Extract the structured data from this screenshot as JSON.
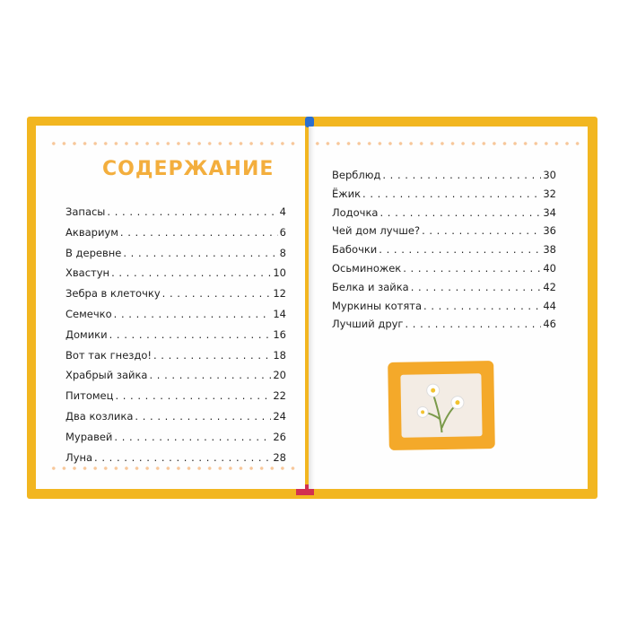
{
  "left_page": {
    "title": "СОДЕРЖАНИЕ",
    "entries": [
      {
        "title": "Запасы",
        "page": "4"
      },
      {
        "title": "Аквариум",
        "page": "6"
      },
      {
        "title": "В деревне",
        "page": "8"
      },
      {
        "title": "Хвастун",
        "page": "10"
      },
      {
        "title": "Зебра в клеточку",
        "page": "12"
      },
      {
        "title": "Семечко",
        "page": "14"
      },
      {
        "title": "Домики",
        "page": "16"
      },
      {
        "title": "Вот так гнездо!",
        "page": "18"
      },
      {
        "title": "Храбрый зайка",
        "page": "20"
      },
      {
        "title": "Питомец",
        "page": "22"
      },
      {
        "title": "Два козлика",
        "page": "24"
      },
      {
        "title": "Муравей",
        "page": "26"
      },
      {
        "title": "Луна",
        "page": "28"
      }
    ]
  },
  "right_page": {
    "entries": [
      {
        "title": "Верблюд",
        "page": "30"
      },
      {
        "title": "Ёжик",
        "page": "32"
      },
      {
        "title": "Лодочка",
        "page": "34"
      },
      {
        "title": "Чей дом лучше?",
        "page": "36"
      },
      {
        "title": "Бабочки",
        "page": "38"
      },
      {
        "title": "Осьминожек",
        "page": "40"
      },
      {
        "title": "Белка и зайка",
        "page": "42"
      },
      {
        "title": "Муркины котята",
        "page": "44"
      },
      {
        "title": "Лучший друг",
        "page": "46"
      }
    ]
  },
  "colors": {
    "cover": "#f2b620",
    "title": "#f3ae3d",
    "dots": "#f7c79a",
    "frame": "#f4a92a"
  }
}
